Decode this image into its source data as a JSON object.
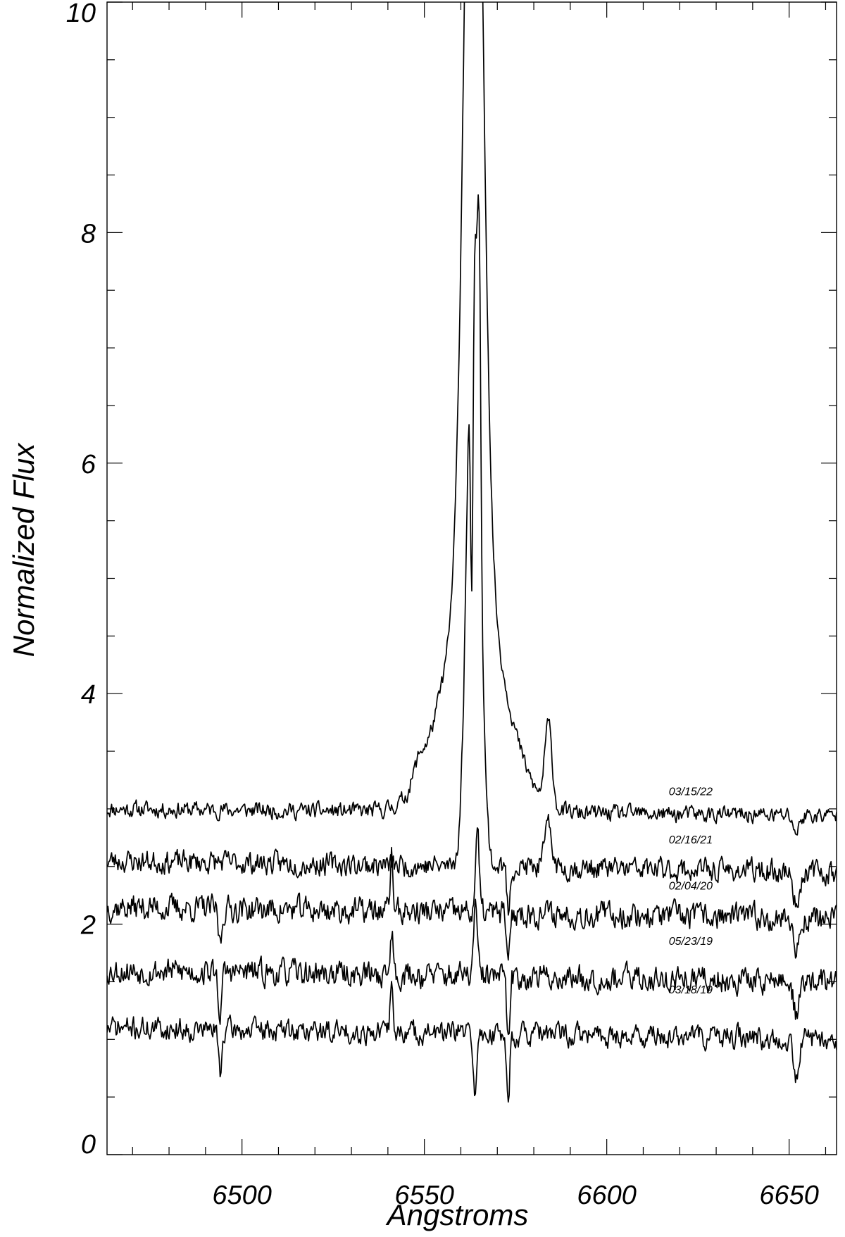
{
  "chart_data": {
    "type": "line",
    "title": "",
    "xlabel": "Angstroms",
    "ylabel": "Normalized Flux",
    "xlim": [
      6463,
      6663
    ],
    "ylim": [
      0,
      10
    ],
    "x_ticks": [
      6500,
      6550,
      6600,
      6650
    ],
    "x_tick_labels": [
      "6500",
      "6550",
      "6600",
      "6650"
    ],
    "y_ticks": [
      0,
      2,
      4,
      6,
      8,
      10
    ],
    "y_tick_labels": [
      "0",
      "2",
      "4",
      "6",
      "8",
      "10"
    ],
    "x_minor_step": 10,
    "y_minor_step": 0.5,
    "grid": false,
    "legend": "none",
    "series": [
      {
        "name": "03/15/22",
        "baseline": 3.0,
        "slope_per_100A": -0.03,
        "noise": 0.05,
        "seed": 11,
        "features": [
          {
            "x": 6563.5,
            "amp": 9.0,
            "width": 2.4
          },
          {
            "x": 6563.5,
            "amp": 2.0,
            "width": 8.0
          },
          {
            "x": 6584.0,
            "amp": 0.7,
            "width": 1.0
          },
          {
            "x": 6548.5,
            "amp": 0.15,
            "width": 1.5
          },
          {
            "x": 6652.0,
            "amp": -0.15,
            "width": 0.8
          }
        ]
      },
      {
        "name": "02/16/21",
        "baseline": 2.55,
        "slope_per_100A": -0.05,
        "noise": 0.07,
        "seed": 23,
        "features": [
          {
            "x": 6563.5,
            "amp": 5.5,
            "width": 1.7
          },
          {
            "x": 6565.0,
            "amp": 2.0,
            "width": 0.45
          },
          {
            "x": 6563.0,
            "amp": -2.9,
            "width": 0.35
          },
          {
            "x": 6584.0,
            "amp": 0.35,
            "width": 1.0
          },
          {
            "x": 6573.0,
            "amp": -0.4,
            "width": 0.4
          },
          {
            "x": 6652.0,
            "amp": -0.3,
            "width": 0.8
          }
        ]
      },
      {
        "name": "02/04/20",
        "baseline": 2.15,
        "slope_per_100A": -0.05,
        "noise": 0.08,
        "seed": 37,
        "features": [
          {
            "x": 6564.5,
            "amp": 0.7,
            "width": 0.5
          },
          {
            "x": 6573.0,
            "amp": -0.5,
            "width": 0.4
          },
          {
            "x": 6541.0,
            "amp": 0.5,
            "width": 0.4
          },
          {
            "x": 6494.0,
            "amp": -0.3,
            "width": 0.5
          },
          {
            "x": 6652.0,
            "amp": -0.3,
            "width": 0.8
          }
        ]
      },
      {
        "name": "05/23/19",
        "baseline": 1.6,
        "slope_per_100A": -0.05,
        "noise": 0.08,
        "seed": 53,
        "features": [
          {
            "x": 6564.0,
            "amp": 0.6,
            "width": 0.5
          },
          {
            "x": 6573.0,
            "amp": -0.6,
            "width": 0.4
          },
          {
            "x": 6494.0,
            "amp": -0.35,
            "width": 0.5
          },
          {
            "x": 6541.0,
            "amp": 0.4,
            "width": 0.4
          },
          {
            "x": 6652.0,
            "amp": -0.3,
            "width": 0.8
          }
        ]
      },
      {
        "name": "03/18/19",
        "baseline": 1.1,
        "slope_per_100A": -0.05,
        "noise": 0.07,
        "seed": 71,
        "features": [
          {
            "x": 6564.0,
            "amp": -0.5,
            "width": 0.5
          },
          {
            "x": 6573.0,
            "amp": -0.6,
            "width": 0.4
          },
          {
            "x": 6494.0,
            "amp": -0.35,
            "width": 0.5
          },
          {
            "x": 6541.0,
            "amp": 0.4,
            "width": 0.4
          },
          {
            "x": 6652.0,
            "amp": -0.3,
            "width": 0.8
          }
        ]
      }
    ],
    "series_labels": [
      {
        "text": "03/15/22",
        "x": 6617,
        "y": 3.12
      },
      {
        "text": "02/16/21",
        "x": 6617,
        "y": 2.7
      },
      {
        "text": "02/04/20",
        "x": 6617,
        "y": 2.3
      },
      {
        "text": "05/23/19",
        "x": 6617,
        "y": 1.82
      },
      {
        "text": "03/18/19",
        "x": 6617,
        "y": 1.4
      }
    ]
  }
}
